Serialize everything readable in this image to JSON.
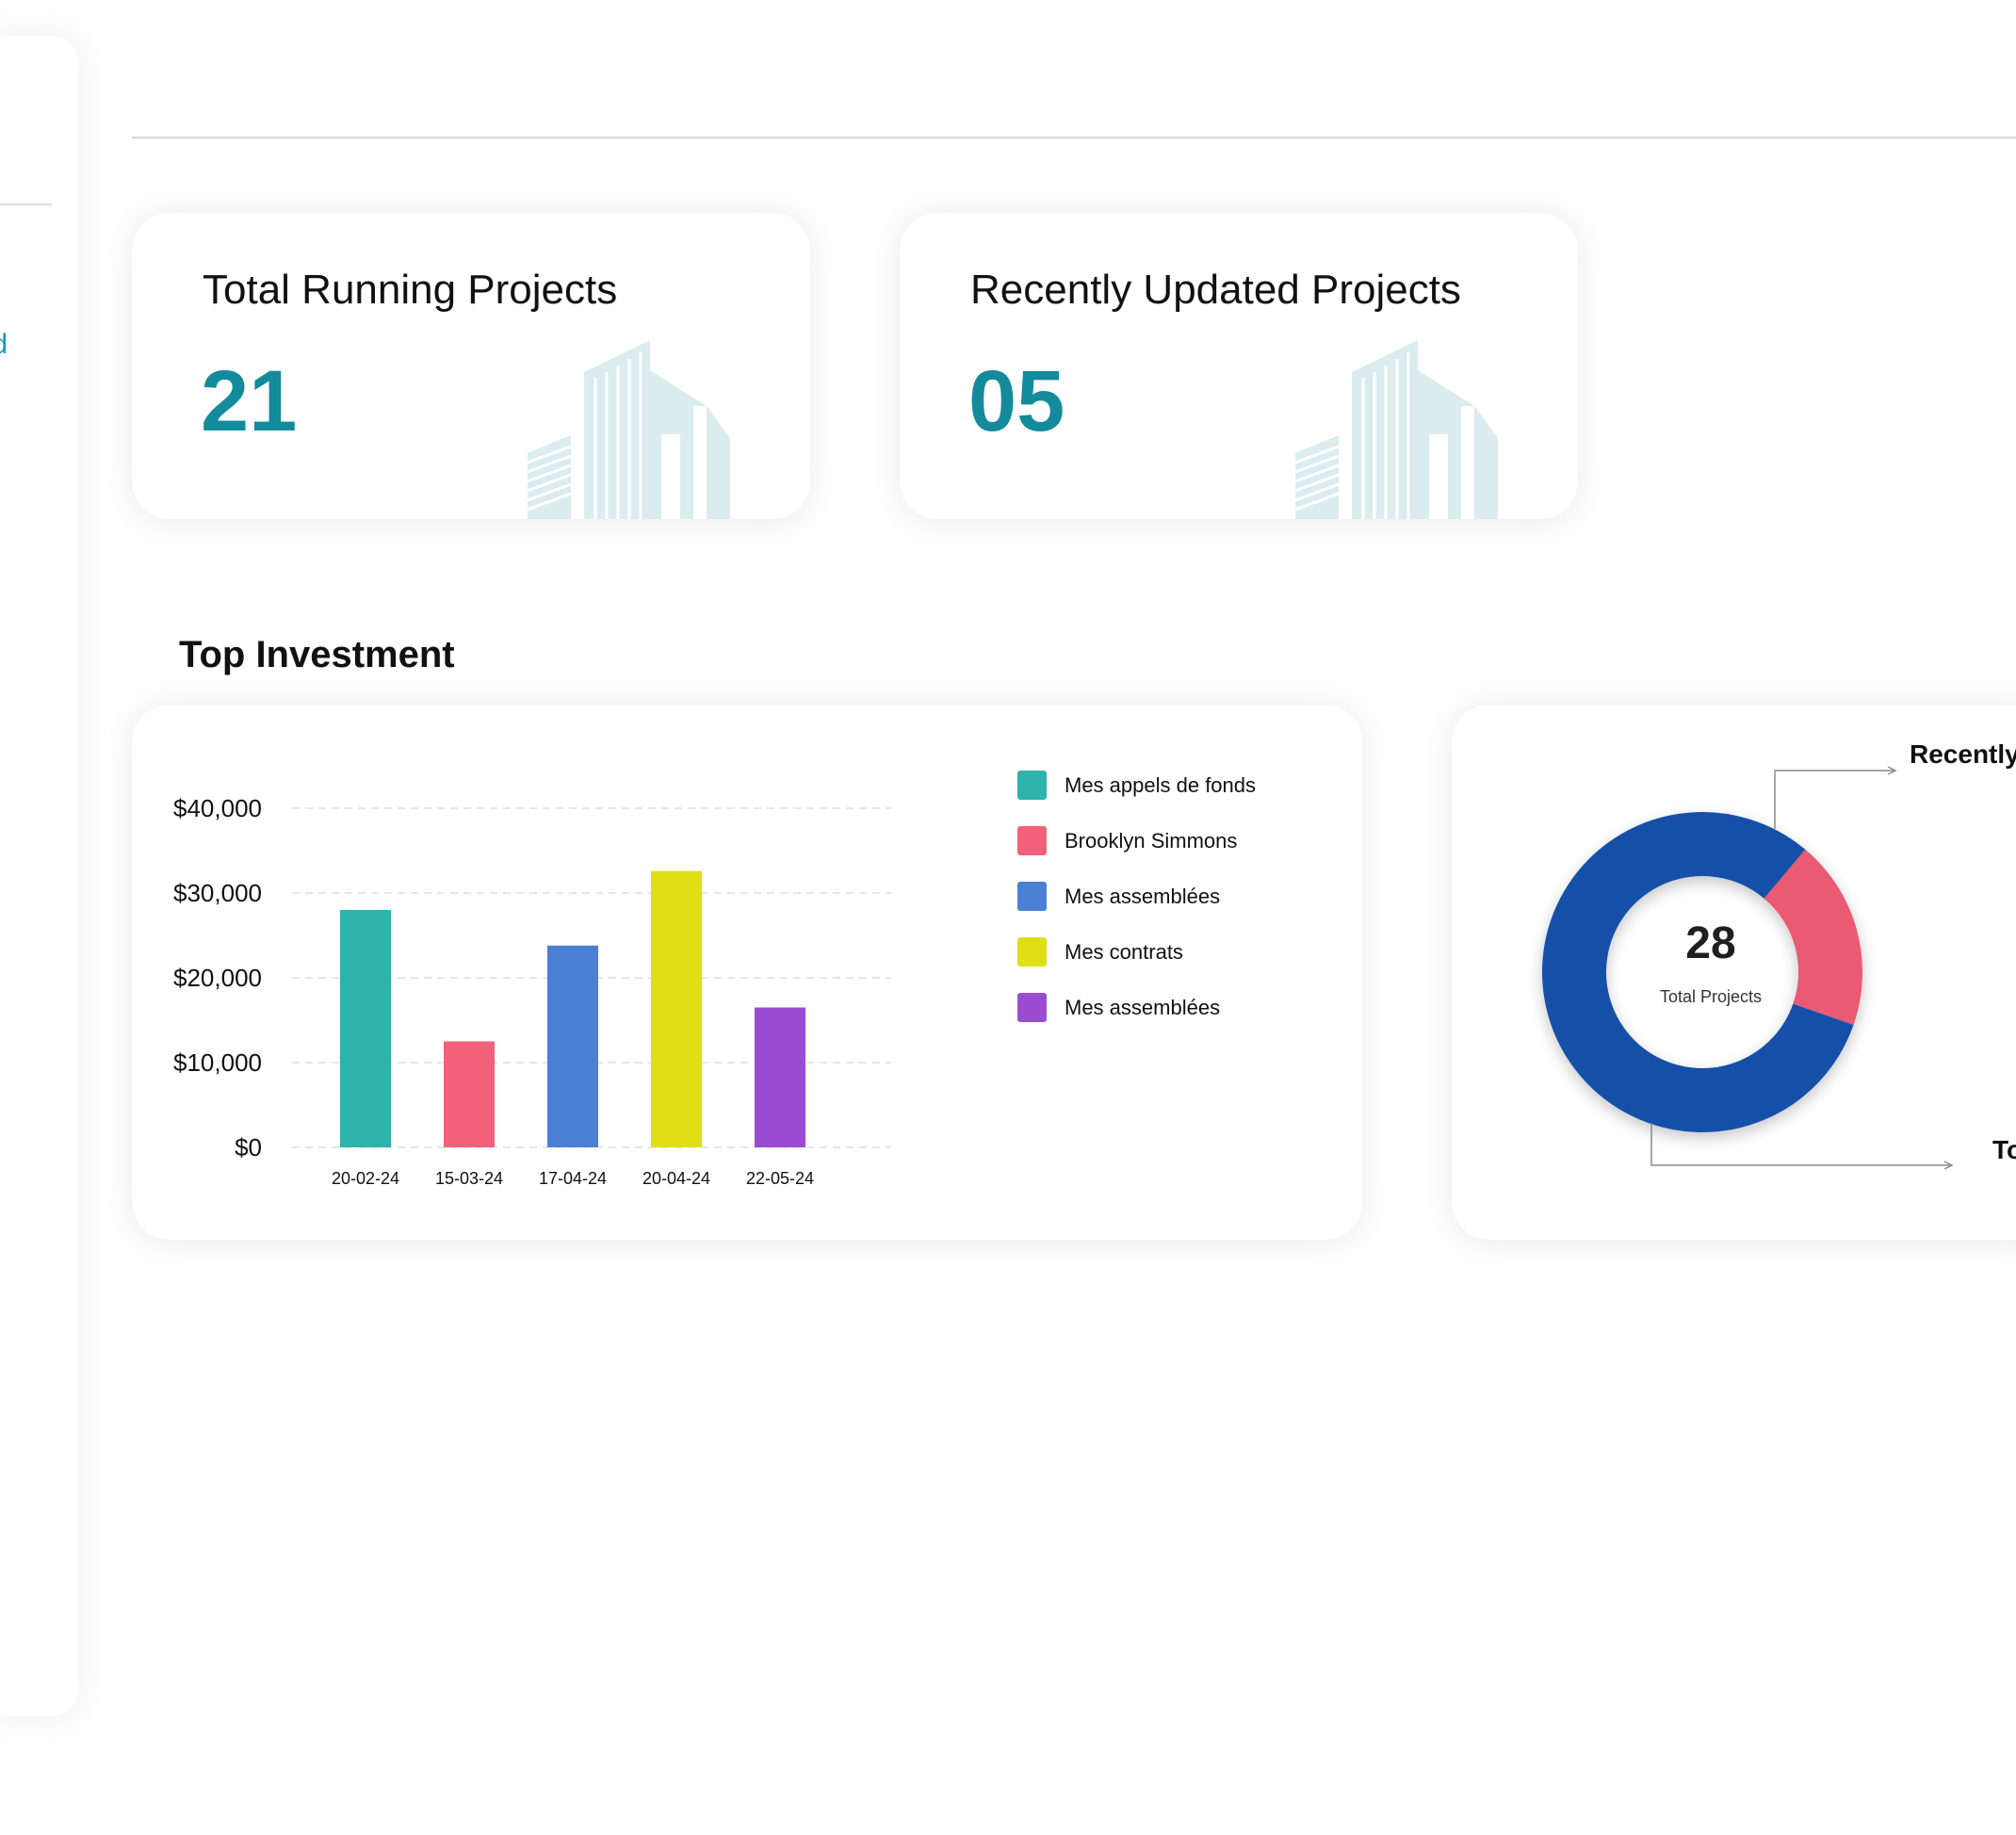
{
  "sidebar": {
    "active_item_label": "Dashboard"
  },
  "cards": [
    {
      "title": "Total Running Projects",
      "value": "21"
    },
    {
      "title": "Recently Updated Projects",
      "value": "05"
    }
  ],
  "section": {
    "title": "Top Investment"
  },
  "colors": {
    "accent": "#138b9c",
    "building_icon": "#dbecef",
    "donut_blue": "#1650a8",
    "donut_pink": "#ea5a73"
  },
  "chart_data": [
    {
      "type": "bar",
      "categories": [
        "20-02-24",
        "15-03-24",
        "17-04-24",
        "20-04-24",
        "22-05-24"
      ],
      "values": [
        28000,
        12500,
        23800,
        32600,
        16500
      ],
      "colors": [
        "#2bb3ac",
        "#f2607a",
        "#4a7fd4",
        "#e1de16",
        "#9b4bd1"
      ],
      "legend": [
        "Mes appels de fonds",
        "Brooklyn Simmons",
        "Mes assemblées",
        "Mes contrats",
        "Mes assemblées"
      ],
      "yticks": [
        "$0",
        "$10,000",
        "$20,000",
        "$30,000",
        "$40,000"
      ],
      "ylim": [
        0,
        40000
      ],
      "grid": true,
      "legend_position": "right",
      "title": "",
      "xlabel": "",
      "ylabel": ""
    },
    {
      "type": "pie",
      "variant": "donut",
      "center_value": "28",
      "center_label": "Total Projects",
      "slices": [
        {
          "label": "Recently Updated Projects",
          "value": 5,
          "color": "#ea5a73"
        },
        {
          "label": "Total Running Projects",
          "value": 21,
          "color": "#1650a8"
        }
      ]
    }
  ]
}
